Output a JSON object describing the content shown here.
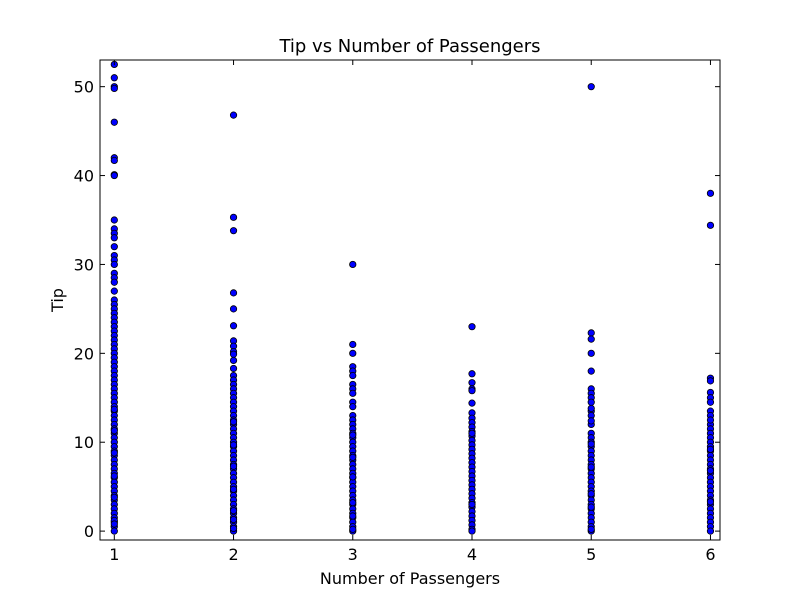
{
  "chart_data": {
    "type": "scatter",
    "title": "Tip vs Number of Passengers",
    "xlabel": "Number of Passengers",
    "ylabel": "Tip",
    "xlim": [
      0.88,
      6.08
    ],
    "ylim": [
      -1,
      53
    ],
    "xticks": [
      1,
      2,
      3,
      4,
      5,
      6
    ],
    "yticks": [
      0,
      10,
      20,
      30,
      40,
      50
    ],
    "grid": false,
    "marker_color": "#0000ff",
    "marker_edge": "#000000",
    "series": [
      {
        "x": [
          1,
          1,
          1,
          1,
          1,
          1,
          1,
          1,
          1,
          1,
          1,
          1,
          1,
          1,
          1,
          1,
          1,
          1,
          1,
          1,
          1,
          1,
          1,
          1,
          1,
          1,
          1,
          1,
          1,
          1,
          1,
          1,
          1,
          1,
          1,
          1,
          1,
          1,
          1,
          1,
          1,
          1,
          1,
          1,
          1,
          1,
          1,
          1,
          1,
          1,
          1,
          1,
          1,
          1,
          1,
          1,
          1,
          1,
          1,
          1,
          1,
          1,
          1,
          1,
          1,
          1,
          1,
          1,
          1,
          1,
          1,
          1,
          1,
          1,
          1,
          1,
          1,
          1,
          1,
          1,
          1,
          2,
          2,
          2,
          2,
          2,
          2,
          2,
          2,
          2,
          2,
          2,
          2,
          2,
          2,
          2,
          2,
          2,
          2,
          2,
          2,
          2,
          2,
          2,
          2,
          2,
          2,
          2,
          2,
          2,
          2,
          2,
          2,
          2,
          2,
          2,
          2,
          2,
          2,
          2,
          2,
          2,
          2,
          2,
          2,
          2,
          2,
          2,
          2,
          2,
          2,
          2,
          2,
          2,
          2,
          2,
          3,
          3,
          3,
          3,
          3,
          3,
          3,
          3,
          3,
          3,
          3,
          3,
          3,
          3,
          3,
          3,
          3,
          3,
          3,
          3,
          3,
          3,
          3,
          3,
          3,
          3,
          3,
          3,
          3,
          3,
          3,
          3,
          3,
          3,
          3,
          3,
          3,
          3,
          3,
          3,
          3,
          3,
          3,
          3,
          4,
          4,
          4,
          4,
          4,
          4,
          4,
          4,
          4,
          4,
          4,
          4,
          4,
          4,
          4,
          4,
          4,
          4,
          4,
          4,
          4,
          4,
          4,
          4,
          4,
          4,
          4,
          4,
          4,
          4,
          4,
          4,
          4,
          4,
          4,
          4,
          5,
          5,
          5,
          5,
          5,
          5,
          5,
          5,
          5,
          5,
          5,
          5,
          5,
          5,
          5,
          5,
          5,
          5,
          5,
          5,
          5,
          5,
          5,
          5,
          5,
          5,
          5,
          5,
          5,
          5,
          5,
          5,
          5,
          5,
          5,
          5,
          5,
          5,
          5,
          5,
          5,
          5,
          6,
          6,
          6,
          6,
          6,
          6,
          6,
          6,
          6,
          6,
          6,
          6,
          6,
          6,
          6,
          6,
          6,
          6,
          6,
          6,
          6,
          6,
          6,
          6,
          6,
          6,
          6,
          6,
          6,
          6,
          6,
          6,
          6,
          6,
          6,
          6,
          6,
          6
        ],
        "y": [
          52.5,
          51,
          50,
          49.8,
          46,
          42,
          41.7,
          40.1,
          40,
          35,
          34,
          33.5,
          33,
          32,
          31,
          30.5,
          30,
          29,
          28.5,
          28,
          27,
          26,
          25.5,
          25,
          24.5,
          24,
          23.5,
          23,
          22.5,
          22,
          21.5,
          21,
          20.5,
          20,
          19.5,
          19,
          18.5,
          18,
          17.5,
          17,
          16.5,
          16,
          15.5,
          15,
          14.5,
          14,
          13.5,
          13,
          12.5,
          12,
          11.5,
          11,
          10.5,
          10,
          9.5,
          9,
          8.5,
          8,
          7.5,
          7,
          6.5,
          6,
          5.5,
          5,
          4.5,
          4,
          3.5,
          3,
          2.5,
          2,
          1.5,
          1,
          0.5,
          0,
          13.7,
          11.3,
          8.8,
          6.2,
          3.8,
          1.2,
          0.8,
          46.8,
          35.3,
          33.8,
          26.8,
          25,
          23.1,
          21.4,
          20.8,
          20.2,
          19.9,
          19.2,
          18.3,
          17.5,
          17,
          16.5,
          16,
          15.5,
          15,
          14.5,
          14,
          13.5,
          13,
          12.5,
          12,
          11.5,
          11,
          10.5,
          10,
          9.5,
          9,
          8.5,
          8,
          7.5,
          7,
          6.5,
          6,
          5.5,
          5,
          4.5,
          4,
          3.5,
          3,
          2.5,
          2,
          1.5,
          1,
          0.5,
          0,
          12.3,
          9.7,
          7.3,
          4.7,
          2.3,
          1.3,
          0.3,
          30,
          21,
          20,
          18.5,
          18,
          17.5,
          16.5,
          16,
          15.5,
          14.5,
          14,
          13,
          12.5,
          12,
          11.5,
          11,
          10.5,
          10,
          9.5,
          9,
          8.5,
          8,
          7.5,
          7,
          6.5,
          6,
          5.5,
          5,
          4.5,
          4,
          3.5,
          3,
          2.5,
          2,
          1.5,
          1,
          0.5,
          0,
          10.8,
          8.3,
          6.1,
          3.2,
          1.7,
          0.2,
          23,
          17.7,
          16.7,
          16,
          15.8,
          14.4,
          13.3,
          12.7,
          12.2,
          11.7,
          11.2,
          10.7,
          10.2,
          9.7,
          9.2,
          8.7,
          8.2,
          7.7,
          7.2,
          6.7,
          6.2,
          5.7,
          5.2,
          4.7,
          4.2,
          3.7,
          3.2,
          2.7,
          2.2,
          1.7,
          1.2,
          0.7,
          0.2,
          0,
          11,
          3,
          50,
          22.3,
          21.6,
          20,
          18,
          16,
          15.5,
          15,
          14.5,
          13.5,
          13,
          12,
          11,
          10.5,
          10,
          9.5,
          9,
          8.5,
          8,
          7.5,
          7,
          6.5,
          6,
          5.5,
          5,
          4.5,
          4,
          3.5,
          3,
          2.5,
          2,
          1.5,
          1,
          0.5,
          0,
          13.8,
          12.4,
          9.8,
          7.2,
          4.2,
          2.7,
          0.2,
          38,
          34.4,
          17.2,
          16.9,
          15.6,
          15,
          14.5,
          13.5,
          13,
          12,
          11.5,
          11,
          10.5,
          10,
          9.5,
          9,
          8.5,
          8,
          7.5,
          7,
          6.5,
          6,
          5.5,
          5,
          4.5,
          4,
          3.5,
          3,
          2.5,
          2,
          1.5,
          1,
          0.5,
          0,
          12.5,
          9.2,
          6.8,
          3.3
        ]
      }
    ]
  }
}
